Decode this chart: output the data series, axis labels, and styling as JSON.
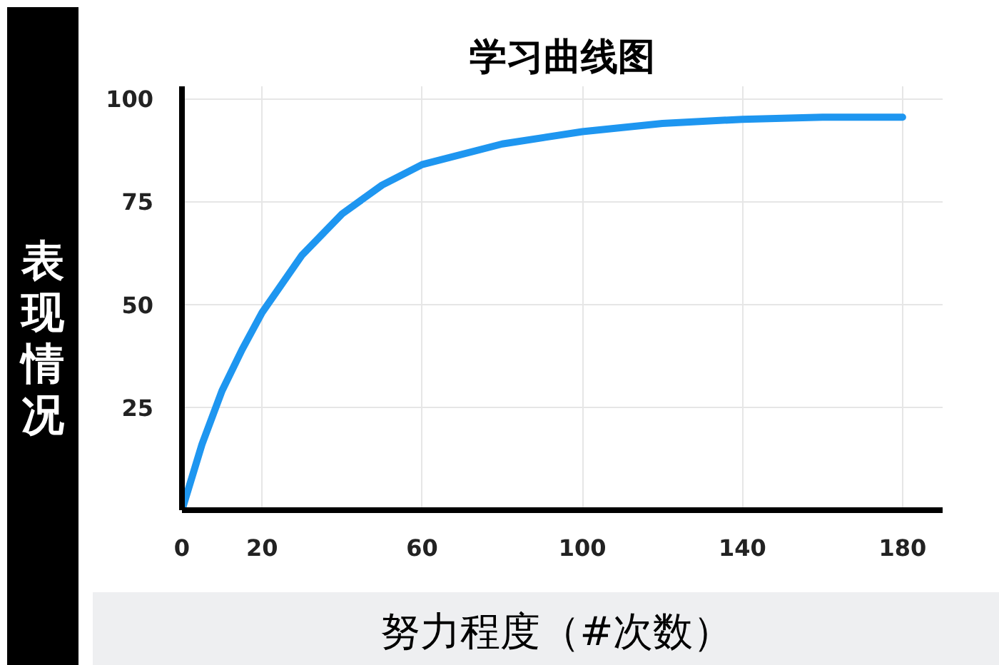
{
  "chart_data": {
    "type": "line",
    "title": "学习曲线图",
    "xlabel": "努力程度（#次数）",
    "ylabel": "表现情况",
    "x": [
      0,
      5,
      10,
      15,
      20,
      30,
      40,
      50,
      60,
      80,
      100,
      120,
      140,
      160,
      180
    ],
    "series": [
      {
        "color": "#1e96f0",
        "values": [
          0,
          16,
          29,
          39,
          48,
          62,
          72,
          79,
          84,
          89,
          92,
          94,
          95,
          95.5,
          95.5
        ]
      }
    ],
    "xlim": [
      0,
      190
    ],
    "ylim": [
      0,
      103
    ],
    "xticks": [
      0,
      20,
      60,
      100,
      140,
      180
    ],
    "yticks": [
      25,
      50,
      75,
      100
    ],
    "grid": true,
    "marker": "none",
    "line_style": "solid"
  }
}
